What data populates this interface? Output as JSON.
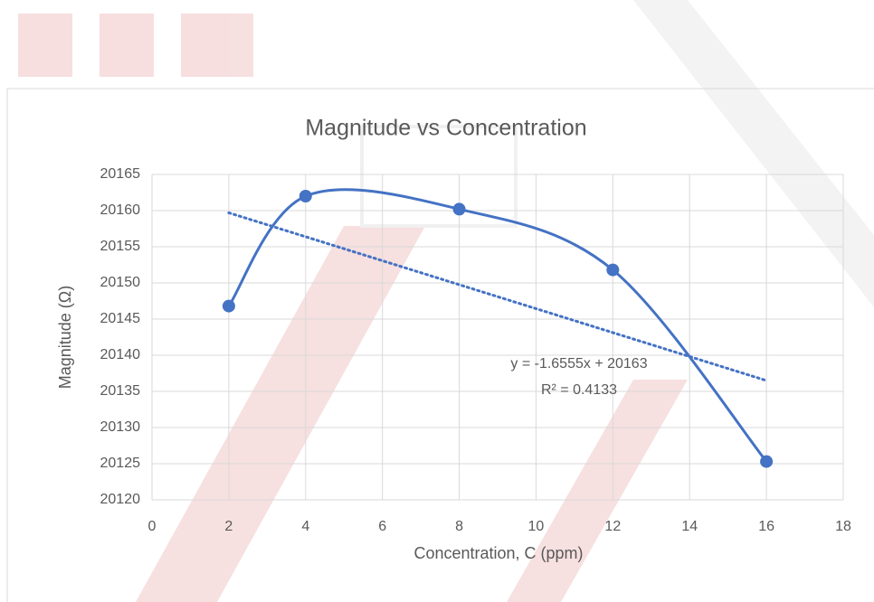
{
  "chart_data": {
    "type": "scatter",
    "title": "Magnitude vs Concentration",
    "x_label": "Concentration, C (ppm)",
    "y_label": "Magnitude (Ω)",
    "series": [
      {
        "x": [
          2,
          4,
          8,
          12,
          16
        ],
        "values": [
          20146.8,
          20162,
          20160.2,
          20151.8,
          20125.3
        ],
        "color": "#4472c4",
        "smooth": true
      }
    ],
    "trendline": {
      "x": [
        2,
        16
      ],
      "values": [
        20159.7,
        20136.5
      ],
      "color": "#4472c4",
      "style": "dotted"
    },
    "annotations": [
      "y = -1.6555x + 20163",
      "R² = 0.4133"
    ],
    "xlim": [
      0,
      18
    ],
    "xticks": [
      0,
      2,
      4,
      6,
      8,
      10,
      12,
      14,
      16,
      18
    ],
    "ylim": [
      20120,
      20165
    ],
    "yticks": [
      20120,
      20125,
      20130,
      20135,
      20140,
      20145,
      20150,
      20155,
      20160,
      20165
    ],
    "grid": true
  }
}
